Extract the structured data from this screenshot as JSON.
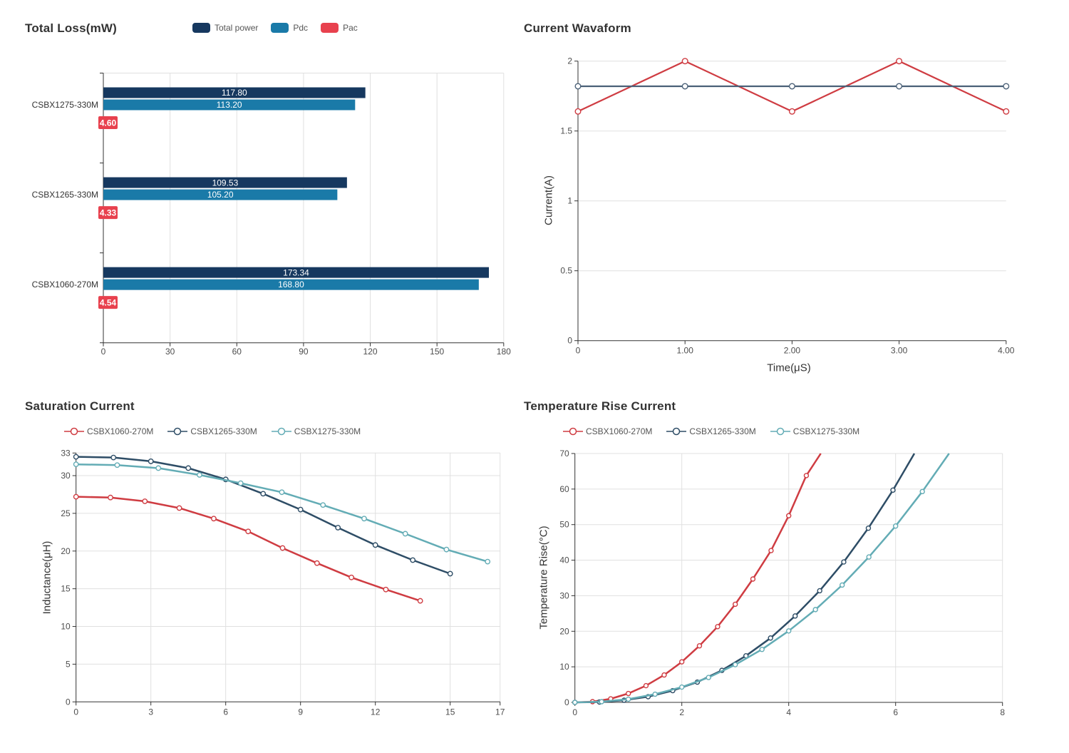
{
  "chart_data": [
    {
      "type": "bar",
      "orientation": "horizontal",
      "title": "Total Loss(mW)",
      "legend": [
        {
          "label": "Total power",
          "color": "#16385f"
        },
        {
          "label": "Pdc",
          "color": "#1a7aa8"
        },
        {
          "label": "Pac",
          "color": "#e8414e"
        }
      ],
      "categories": [
        "CSBX1275-330M",
        "CSBX1265-330M",
        "CSBX1060-270M"
      ],
      "series": [
        {
          "name": "Total power",
          "color": "#16385f",
          "values": [
            117.8,
            109.53,
            173.34
          ],
          "labels": [
            "117.80",
            "109.53",
            "173.34"
          ]
        },
        {
          "name": "Pdc",
          "color": "#1a7aa8",
          "values": [
            113.2,
            105.2,
            168.8
          ],
          "labels": [
            "113.20",
            "105.20",
            "168.80"
          ]
        },
        {
          "name": "Pac",
          "color": "#e8414e",
          "values": [
            4.6,
            4.33,
            4.54
          ],
          "labels": [
            "4.60",
            "4.33",
            "4.54"
          ]
        }
      ],
      "xlim": [
        0,
        180
      ],
      "x_ticks": [
        0,
        30,
        60,
        90,
        120,
        150,
        180
      ],
      "grid": true
    },
    {
      "type": "line",
      "title": "Current Wavaform",
      "xlabel": "Time(μS)",
      "ylabel": "Current(A)",
      "xlim": [
        0,
        4
      ],
      "ylim": [
        0,
        2
      ],
      "x_tick_values": [
        0,
        1,
        2,
        3,
        4
      ],
      "x_tick_labels": [
        "0",
        "1.00",
        "2.00",
        "3.00",
        "4.00"
      ],
      "y_tick_values": [
        0,
        0.5,
        1,
        1.5,
        2
      ],
      "y_tick_labels": [
        "0",
        "0.5",
        "1",
        "1.5",
        "2"
      ],
      "grid_x": false,
      "grid_y": true,
      "series": [
        {
          "color": "#cf3c42",
          "x": [
            0,
            1,
            2,
            3,
            4
          ],
          "y": [
            1.64,
            2,
            1.64,
            2,
            1.64
          ]
        },
        {
          "color": "#4a6077",
          "x": [
            0,
            1,
            2,
            3,
            4
          ],
          "y": [
            1.82,
            1.82,
            1.82,
            1.82,
            1.82
          ]
        }
      ]
    },
    {
      "type": "line",
      "title": "Saturation Current",
      "ylabel": "Inductance(μH)",
      "legend": [
        {
          "label": "CSBX1060-270M",
          "color": "#cf3c42"
        },
        {
          "label": "CSBX1265-330M",
          "color": "#2e4d66"
        },
        {
          "label": "CSBX1275-330M",
          "color": "#63acb5"
        }
      ],
      "xlim": [
        0,
        17
      ],
      "ylim": [
        0,
        33
      ],
      "x_tick_values": [
        0,
        3,
        6,
        9,
        12,
        15,
        17
      ],
      "x_tick_labels": [
        "0",
        "3",
        "6",
        "9",
        "12",
        "15",
        "17"
      ],
      "y_tick_values": [
        0,
        5,
        10,
        15,
        20,
        25,
        30,
        33
      ],
      "y_tick_labels": [
        "0",
        "5",
        "10",
        "15",
        "20",
        "25",
        "30",
        "33"
      ],
      "grid_x": true,
      "grid_y": true,
      "series": [
        {
          "name": "CSBX1060-270M",
          "color": "#cf3c42",
          "x": [
            0,
            1.38,
            2.76,
            4.14,
            5.52,
            6.9,
            8.28,
            9.66,
            11.04,
            12.42,
            13.8
          ],
          "y": [
            27.2,
            27.1,
            26.6,
            25.7,
            24.3,
            22.6,
            20.4,
            18.4,
            16.5,
            14.9,
            13.4
          ]
        },
        {
          "name": "CSBX1265-330M",
          "color": "#2e4d66",
          "x": [
            0,
            1.5,
            3,
            4.5,
            6,
            7.5,
            9,
            10.5,
            12,
            13.5,
            15
          ],
          "y": [
            32.5,
            32.4,
            31.9,
            31.0,
            29.5,
            27.6,
            25.5,
            23.1,
            20.8,
            18.8,
            17.0
          ]
        },
        {
          "name": "CSBX1275-330M",
          "color": "#63acb5",
          "x": [
            0,
            1.65,
            3.3,
            4.95,
            6.6,
            8.25,
            9.9,
            11.55,
            13.2,
            14.85,
            16.5
          ],
          "y": [
            31.5,
            31.4,
            31.0,
            30.1,
            29.0,
            27.8,
            26.1,
            24.3,
            22.3,
            20.2,
            18.6
          ]
        }
      ]
    },
    {
      "type": "line",
      "title": "Temperature Rise Current",
      "ylabel": "Temperature Rise(°C)",
      "legend": [
        {
          "label": "CSBX1060-270M",
          "color": "#cf3c42"
        },
        {
          "label": "CSBX1265-330M",
          "color": "#2e4d66"
        },
        {
          "label": "CSBX1275-330M",
          "color": "#63acb5"
        }
      ],
      "xlim": [
        0,
        8
      ],
      "ylim": [
        0,
        70
      ],
      "x_tick_values": [
        0,
        2,
        4,
        6,
        8
      ],
      "x_tick_labels": [
        "0",
        "2",
        "4",
        "6",
        "8"
      ],
      "y_tick_values": [
        0,
        10,
        20,
        30,
        40,
        50,
        60,
        70
      ],
      "y_tick_labels": [
        "0",
        "10",
        "20",
        "30",
        "40",
        "50",
        "60",
        "70"
      ],
      "grid_x": true,
      "grid_y": true,
      "series": [
        {
          "name": "CSBX1060-270M",
          "color": "#cf3c42",
          "clip_last": true,
          "x": [
            0,
            0.33,
            0.67,
            1,
            1.33,
            1.67,
            2,
            2.33,
            2.67,
            3,
            3.33,
            3.67,
            4,
            4.33,
            4.6
          ],
          "y": [
            0,
            0.2,
            1.0,
            2.5,
            4.7,
            7.7,
            11.4,
            15.9,
            21.3,
            27.6,
            34.7,
            42.7,
            52.5,
            63.8,
            70
          ]
        },
        {
          "name": "CSBX1265-330M",
          "color": "#2e4d66",
          "clip_last": true,
          "x": [
            0,
            0.46,
            0.92,
            1.37,
            1.83,
            2.29,
            2.75,
            3.2,
            3.66,
            4.12,
            4.58,
            5.03,
            5.49,
            5.95,
            6.35
          ],
          "y": [
            0,
            0.1,
            0.6,
            1.6,
            3.3,
            5.7,
            9.0,
            13.1,
            18.1,
            24.3,
            31.4,
            39.5,
            49.0,
            59.7,
            70
          ]
        },
        {
          "name": "CSBX1275-330M",
          "color": "#63acb5",
          "clip_last": true,
          "x": [
            0,
            0.5,
            1,
            1.5,
            2,
            2.5,
            3,
            3.5,
            4,
            4.5,
            5,
            5.5,
            6,
            6.5,
            7
          ],
          "y": [
            0,
            0.2,
            0.9,
            2.3,
            4.3,
            7.0,
            10.6,
            14.9,
            20.1,
            26.1,
            33.0,
            40.9,
            49.6,
            59.3,
            70
          ]
        }
      ]
    }
  ],
  "style": {
    "grid_color": "#e0e0e0",
    "axis_color": "#333333",
    "tick_text_color": "#4d4d4d",
    "category_text_color": "#333333",
    "bar_value_text_color": "#ffffff"
  }
}
